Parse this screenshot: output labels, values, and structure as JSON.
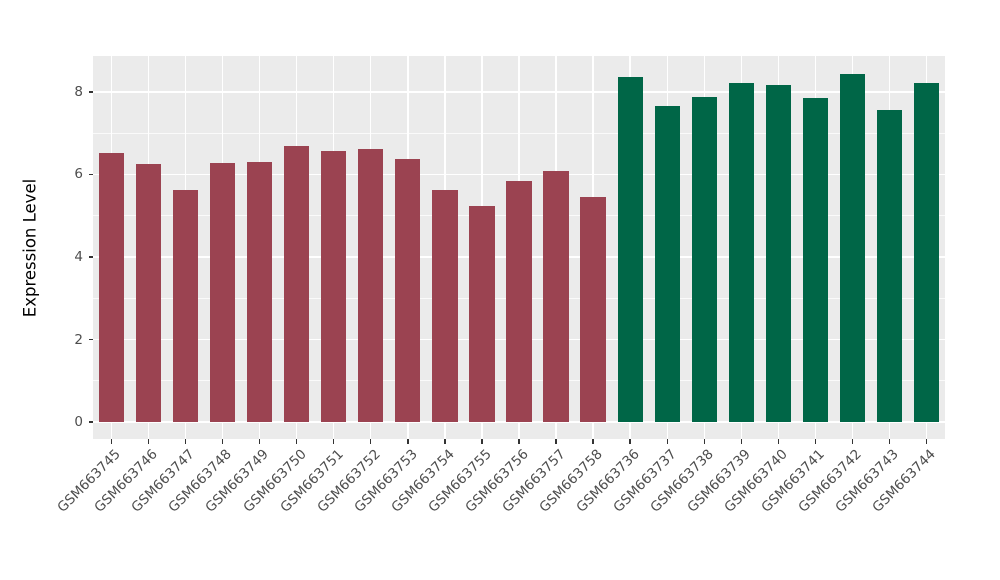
{
  "chart_data": {
    "type": "bar",
    "title": "",
    "xlabel": "",
    "ylabel": "Expression Level",
    "categories": [
      "GSM663745",
      "GSM663746",
      "GSM663747",
      "GSM663748",
      "GSM663749",
      "GSM663750",
      "GSM663751",
      "GSM663752",
      "GSM663753",
      "GSM663754",
      "GSM663755",
      "GSM663756",
      "GSM663757",
      "GSM663758",
      "GSM663736",
      "GSM663737",
      "GSM663738",
      "GSM663739",
      "GSM663740",
      "GSM663741",
      "GSM663742",
      "GSM663743",
      "GSM663744"
    ],
    "values": [
      6.51,
      6.25,
      5.62,
      6.27,
      6.31,
      6.7,
      6.56,
      6.61,
      6.38,
      5.62,
      5.24,
      5.83,
      6.08,
      5.45,
      8.37,
      7.66,
      7.88,
      8.21,
      8.16,
      7.86,
      8.43,
      7.56,
      8.21
    ],
    "colors": [
      "#9B4351",
      "#9B4351",
      "#9B4351",
      "#9B4351",
      "#9B4351",
      "#9B4351",
      "#9B4351",
      "#9B4351",
      "#9B4351",
      "#9B4351",
      "#9B4351",
      "#9B4351",
      "#9B4351",
      "#9B4351",
      "#006647",
      "#006647",
      "#006647",
      "#006647",
      "#006647",
      "#006647",
      "#006647",
      "#006647",
      "#006647"
    ],
    "yticks": [
      0,
      2,
      4,
      6,
      8
    ],
    "yticks_minor": [
      1,
      3,
      5,
      7
    ],
    "ylim": [
      -0.41,
      8.87
    ],
    "grid": true,
    "legend": "none",
    "panel_bg": "#EBEBEB",
    "grid_color": "#FFFFFF",
    "tick_color": "#333333",
    "axis_text_color": "#4D4D4D",
    "axis_title_color": "#000000"
  }
}
